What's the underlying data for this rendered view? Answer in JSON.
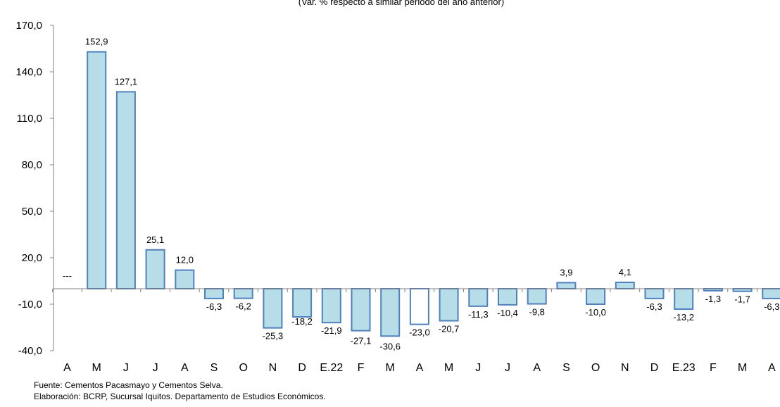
{
  "chart_data": {
    "type": "bar",
    "title": "",
    "subtitle": "(Var. % respecto a similar periodo del año anterior)",
    "xlabel": "",
    "ylabel": "",
    "ylim": [
      -40,
      170
    ],
    "yticks": [
      "170,0",
      "140,0",
      "110,0",
      "80,0",
      "50,0",
      "20,0",
      "-10,0",
      "-40,0"
    ],
    "ytick_values": [
      170,
      140,
      110,
      80,
      50,
      20,
      -10,
      -40
    ],
    "categories": [
      "A",
      "M",
      "J",
      "J",
      "A",
      "S",
      "O",
      "N",
      "D",
      "E.22",
      "F",
      "M",
      "A",
      "M",
      "J",
      "J",
      "A",
      "S",
      "O",
      "N",
      "D",
      "E.23",
      "F",
      "M",
      "A"
    ],
    "values": [
      null,
      152.9,
      127.1,
      25.1,
      12.0,
      -6.3,
      -6.2,
      -25.3,
      -18.2,
      -21.9,
      -27.1,
      -30.6,
      -23.0,
      -20.7,
      -11.3,
      -10.4,
      -9.8,
      3.9,
      -10.0,
      4.1,
      -6.3,
      -13.2,
      -1.3,
      -1.7,
      -6.3
    ],
    "data_labels": [
      "---",
      "152,9",
      "127,1",
      "25,1",
      "12,0",
      "-6,3",
      "-6,2",
      "-25,3",
      "-18,2",
      "-21,9",
      "-27,1",
      "-30,6",
      "-23,0",
      "-20,7",
      "-11,3",
      "-10,4",
      "-9,8",
      "3,9",
      "-10,0",
      "4,1",
      "-6,3",
      "-13,2",
      "-1,3",
      "-1,7",
      "-6,3"
    ],
    "highlight_index": 12,
    "bar_fill": "#b7dde8",
    "bar_stroke": "#4f81bd",
    "highlight_fill": "#ffffff",
    "grid": false
  },
  "notes": {
    "source": "Fuente: Cementos Pacasmayo y Cementos Selva.",
    "elaboration": "Elaboración: BCRP, Sucursal Iquitos. Departamento de Estudios Económicos."
  }
}
